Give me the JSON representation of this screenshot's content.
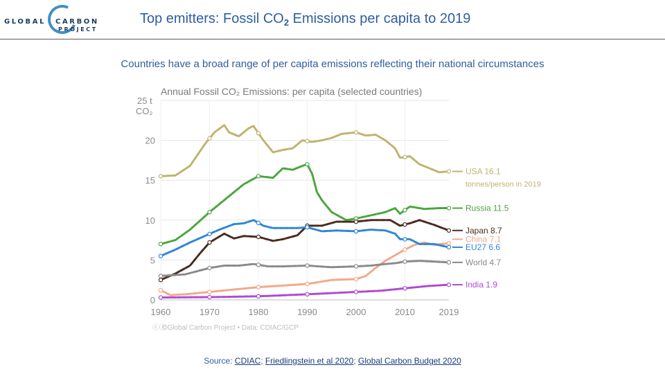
{
  "logo": {
    "line1_left": "GLOBAL",
    "line1_right": "CARBON",
    "line2": "PROJECT"
  },
  "slide": {
    "title_before_sub": "Top emitters: Fossil CO",
    "title_sub": "2",
    "title_after_sub": " Emissions per capita to 2019",
    "subtitle": "Countries have a broad range of per capita emissions reflecting their national circumstances"
  },
  "source": {
    "prefix": "Source: ",
    "link1": "CDIAC",
    "sep1": "; ",
    "link2": "Friedlingstein et al 2020",
    "sep2": "; ",
    "link3": "Global Carbon Budget 2020"
  },
  "chart_data": {
    "type": "line",
    "title": "Annual Fossil CO₂ Emissions: per capita (selected countries)",
    "ylabel_line1": "25 t",
    "ylabel_line2": "CO₂",
    "ylim": [
      0,
      25
    ],
    "xlim": [
      1960,
      2019
    ],
    "yticks": [
      "0",
      "5",
      "10",
      "15",
      "20"
    ],
    "xticks": [
      "1960",
      "1970",
      "1980",
      "1990",
      "2000",
      "2010",
      "2019"
    ],
    "grid": true,
    "legend_placement": "right",
    "unit_note": "tonnes/person in 2019",
    "credit": "©Global Carbon Project • Data: CDIAC/GCP",
    "credit_icons": "ⓒⓘ",
    "series": [
      {
        "name": "USA",
        "label": "USA 16.1",
        "color": "#bfb36e",
        "x": [
          1960,
          1963,
          1966,
          1969,
          1971,
          1973,
          1974,
          1976,
          1978,
          1979,
          1981,
          1983,
          1985,
          1987,
          1989,
          1991,
          1993,
          1995,
          1997,
          2000,
          2002,
          2004,
          2006,
          2008,
          2009,
          2011,
          2013,
          2015,
          2017,
          2019
        ],
        "y": [
          15.5,
          15.6,
          16.8,
          19.5,
          21.0,
          21.9,
          21.0,
          20.5,
          21.5,
          21.8,
          20.0,
          18.5,
          18.8,
          19.0,
          20.0,
          19.8,
          20.0,
          20.3,
          20.8,
          21.0,
          20.6,
          20.7,
          20.0,
          19.0,
          17.8,
          18.0,
          17.0,
          16.5,
          16.0,
          16.1
        ]
      },
      {
        "name": "Russia",
        "label": "Russia 11.5",
        "color": "#4aa63e",
        "x": [
          1960,
          1963,
          1966,
          1970,
          1974,
          1977,
          1980,
          1983,
          1985,
          1987,
          1989,
          1990,
          1991,
          1992,
          1993,
          1995,
          1998,
          2000,
          2003,
          2006,
          2008,
          2009,
          2011,
          2014,
          2017,
          2019
        ],
        "y": [
          7.0,
          7.5,
          8.8,
          11.0,
          13.0,
          14.5,
          15.5,
          15.3,
          16.5,
          16.3,
          16.8,
          17.0,
          15.8,
          13.5,
          12.5,
          11.0,
          10.0,
          10.2,
          10.6,
          11.0,
          11.5,
          10.8,
          11.7,
          11.4,
          11.5,
          11.5
        ]
      },
      {
        "name": "Japan",
        "label": "Japan 8.7",
        "color": "#4a2c20",
        "x": [
          1960,
          1963,
          1966,
          1968,
          1970,
          1973,
          1975,
          1977,
          1980,
          1983,
          1985,
          1988,
          1990,
          1993,
          1996,
          2000,
          2003,
          2007,
          2009,
          2011,
          2013,
          2016,
          2019
        ],
        "y": [
          2.5,
          3.3,
          4.3,
          5.8,
          7.2,
          8.3,
          7.7,
          8.0,
          7.9,
          7.4,
          7.6,
          8.1,
          9.3,
          9.3,
          9.8,
          9.8,
          10.0,
          10.0,
          9.3,
          9.6,
          10.0,
          9.4,
          8.7
        ]
      },
      {
        "name": "China",
        "label": "China 7.1",
        "color": "#f0a98a",
        "x": [
          1960,
          1962,
          1965,
          1970,
          1975,
          1980,
          1985,
          1990,
          1995,
          2000,
          2002,
          2004,
          2006,
          2008,
          2010,
          2012,
          2014,
          2016,
          2019
        ],
        "y": [
          1.2,
          0.6,
          0.7,
          1.0,
          1.3,
          1.6,
          1.8,
          2.0,
          2.5,
          2.6,
          3.0,
          4.0,
          4.9,
          5.6,
          6.3,
          6.9,
          7.2,
          6.9,
          7.1
        ]
      },
      {
        "name": "EU27",
        "label": "EU27 6.6",
        "color": "#2f86d8",
        "x": [
          1960,
          1963,
          1966,
          1969,
          1972,
          1975,
          1977,
          1979,
          1981,
          1983,
          1985,
          1988,
          1990,
          1993,
          1996,
          2000,
          2003,
          2006,
          2008,
          2009,
          2011,
          2013,
          2016,
          2019
        ],
        "y": [
          5.5,
          6.3,
          7.2,
          8.0,
          8.8,
          9.5,
          9.6,
          10.0,
          9.3,
          9.0,
          9.0,
          9.0,
          9.1,
          8.6,
          8.7,
          8.6,
          8.8,
          8.7,
          8.3,
          7.6,
          7.6,
          7.0,
          7.0,
          6.6
        ]
      },
      {
        "name": "World",
        "label": "World 4.7",
        "color": "#8a8a8a",
        "x": [
          1960,
          1965,
          1970,
          1973,
          1976,
          1979,
          1982,
          1985,
          1990,
          1995,
          2000,
          2003,
          2006,
          2008,
          2010,
          2013,
          2016,
          2019
        ],
        "y": [
          3.0,
          3.2,
          4.0,
          4.3,
          4.3,
          4.5,
          4.2,
          4.2,
          4.3,
          4.1,
          4.2,
          4.3,
          4.5,
          4.6,
          4.8,
          4.9,
          4.8,
          4.7
        ]
      },
      {
        "name": "India",
        "label": "India 1.9",
        "color": "#b04ad0",
        "x": [
          1960,
          1970,
          1980,
          1990,
          1995,
          2000,
          2005,
          2010,
          2015,
          2019
        ],
        "y": [
          0.3,
          0.35,
          0.45,
          0.7,
          0.85,
          1.0,
          1.15,
          1.45,
          1.75,
          1.9
        ]
      }
    ],
    "legend_y": [
      16.1,
      11.5,
      8.7,
      7.6,
      6.6,
      4.7,
      1.9
    ]
  }
}
